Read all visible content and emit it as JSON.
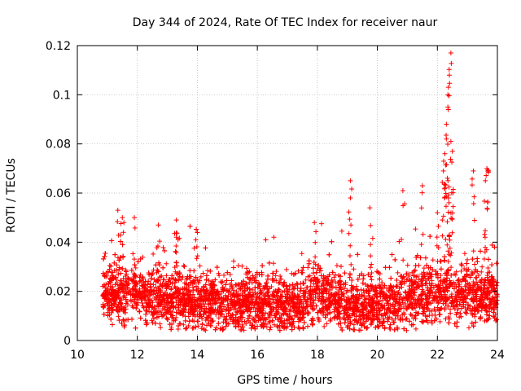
{
  "chart_data": {
    "type": "scatter",
    "title": "Day 344 of 2024, Rate Of TEC Index for receiver naur",
    "xlabel": "GPS time / hours",
    "ylabel": "ROTI / TECUs",
    "xlim": [
      10,
      24
    ],
    "ylim": [
      0,
      0.12
    ],
    "x_ticks": [
      "10",
      "12",
      "14",
      "16",
      "18",
      "20",
      "22",
      "24"
    ],
    "y_ticks": [
      "0",
      "0.02",
      "0.04",
      "0.06",
      "0.08",
      "0.1",
      "0.12"
    ],
    "grid": true,
    "marker": "+",
    "color": "#ff0000",
    "x_range_data": [
      10.85,
      24
    ],
    "baseline_envelope": {
      "x": [
        10.9,
        11.5,
        12.5,
        13.5,
        14.5,
        15.5,
        16.5,
        17.5,
        18.0,
        18.5,
        19.0,
        19.5,
        20.0,
        20.5,
        21.0,
        21.5,
        22.0,
        22.5,
        23.0,
        23.5,
        24.0
      ],
      "y_mean": [
        0.018,
        0.019,
        0.018,
        0.016,
        0.015,
        0.014,
        0.014,
        0.015,
        0.02,
        0.017,
        0.013,
        0.013,
        0.014,
        0.016,
        0.017,
        0.018,
        0.018,
        0.019,
        0.019,
        0.018,
        0.018
      ]
    },
    "notable_points": [
      {
        "x": 11.35,
        "y": 0.053
      },
      {
        "x": 11.5,
        "y": 0.05
      },
      {
        "x": 11.9,
        "y": 0.05
      },
      {
        "x": 12.7,
        "y": 0.047
      },
      {
        "x": 13.3,
        "y": 0.049
      },
      {
        "x": 13.3,
        "y": 0.042
      },
      {
        "x": 13.95,
        "y": 0.041
      },
      {
        "x": 16.55,
        "y": 0.042
      },
      {
        "x": 17.9,
        "y": 0.048
      },
      {
        "x": 19.1,
        "y": 0.065
      },
      {
        "x": 19.1,
        "y": 0.058
      },
      {
        "x": 19.75,
        "y": 0.054
      },
      {
        "x": 20.85,
        "y": 0.061
      },
      {
        "x": 21.5,
        "y": 0.063
      },
      {
        "x": 22.0,
        "y": 0.052
      },
      {
        "x": 22.2,
        "y": 0.069
      },
      {
        "x": 22.25,
        "y": 0.076
      },
      {
        "x": 22.3,
        "y": 0.082
      },
      {
        "x": 22.3,
        "y": 0.088
      },
      {
        "x": 22.35,
        "y": 0.095
      },
      {
        "x": 22.35,
        "y": 0.1
      },
      {
        "x": 22.4,
        "y": 0.108
      },
      {
        "x": 22.45,
        "y": 0.117
      },
      {
        "x": 22.45,
        "y": 0.081
      },
      {
        "x": 22.5,
        "y": 0.077
      },
      {
        "x": 23.2,
        "y": 0.069
      },
      {
        "x": 23.65,
        "y": 0.07
      },
      {
        "x": 23.7,
        "y": 0.069
      },
      {
        "x": 23.6,
        "y": 0.065
      }
    ]
  }
}
